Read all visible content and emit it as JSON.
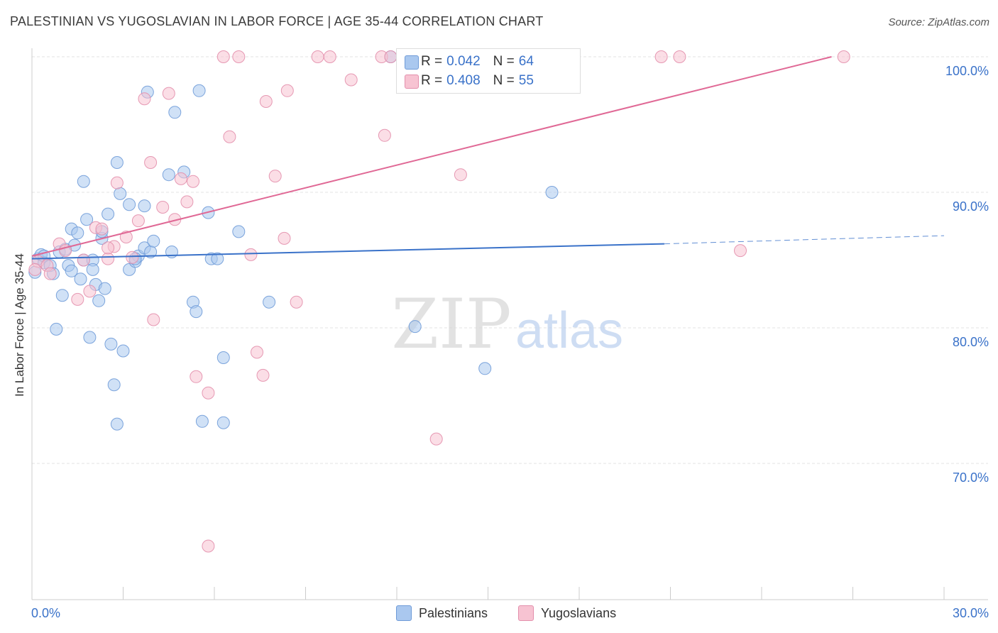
{
  "header": {
    "title": "PALESTINIAN VS YUGOSLAVIAN IN LABOR FORCE | AGE 35-44 CORRELATION CHART",
    "source": "Source: ZipAtlas.com"
  },
  "watermark": {
    "zip": "ZIP",
    "atlas": "atlas"
  },
  "stats": [
    {
      "r_label": "R =",
      "r_value": "0.042",
      "n_label": "N =",
      "n_value": "64",
      "color": "#aac8ef",
      "border": "#6f9bd8"
    },
    {
      "r_label": "R =",
      "r_value": "0.408",
      "n_label": "N =",
      "n_value": "55",
      "color": "#f7c3d2",
      "border": "#e38fac"
    }
  ],
  "legend": [
    {
      "label": "Palestinians",
      "color": "#aac8ef",
      "border": "#6f9bd8"
    },
    {
      "label": "Yugoslavians",
      "color": "#f7c3d2",
      "border": "#e38fac"
    }
  ],
  "chart_data": {
    "type": "scatter",
    "title": "PALESTINIAN VS YUGOSLAVIAN IN LABOR FORCE | AGE 35-44 CORRELATION CHART",
    "xlabel": "",
    "ylabel": "In Labor Force | Age 35-44",
    "xlim": [
      0,
      30
    ],
    "ylim": [
      60,
      102
    ],
    "x_tick_labels": [
      {
        "value": 0,
        "label": "0.0%"
      },
      {
        "value": 30,
        "label": "30.0%"
      }
    ],
    "y_tick_labels": [
      {
        "value": 70,
        "label": "70.0%"
      },
      {
        "value": 80,
        "label": "80.0%"
      },
      {
        "value": 90,
        "label": "90.0%"
      },
      {
        "value": 100,
        "label": "100.0%"
      }
    ],
    "grid": true,
    "colors": {
      "blue": "#3a72c9",
      "blue_fill": "#aac8ef",
      "pink": "#e06895",
      "pink_fill": "#f7c3d2",
      "axis_text": "#3a72c9"
    },
    "series": [
      {
        "name": "Palestinians",
        "color": "#3a72c9",
        "trend": {
          "x0": 0,
          "y0": 85.1,
          "x1": 20.8,
          "y1": 86.2,
          "dashed_to_x": 30,
          "dashed_to_y": 86.8
        },
        "points": [
          [
            0.2,
            85.1
          ],
          [
            0.3,
            85.4
          ],
          [
            0.4,
            84.8
          ],
          [
            0.4,
            85.3
          ],
          [
            0.6,
            84.6
          ],
          [
            0.7,
            84.0
          ],
          [
            0.9,
            85.6
          ],
          [
            1.0,
            82.4
          ],
          [
            0.8,
            79.9
          ],
          [
            1.1,
            85.8
          ],
          [
            1.2,
            84.6
          ],
          [
            1.3,
            87.3
          ],
          [
            1.4,
            86.1
          ],
          [
            1.5,
            87.0
          ],
          [
            1.6,
            83.6
          ],
          [
            1.7,
            85.0
          ],
          [
            1.8,
            88.0
          ],
          [
            1.7,
            90.8
          ],
          [
            1.9,
            79.3
          ],
          [
            2.0,
            85.0
          ],
          [
            2.0,
            84.3
          ],
          [
            2.1,
            83.2
          ],
          [
            2.2,
            82.0
          ],
          [
            2.3,
            86.6
          ],
          [
            2.3,
            87.1
          ],
          [
            2.4,
            82.9
          ],
          [
            2.5,
            88.4
          ],
          [
            2.6,
            78.8
          ],
          [
            2.7,
            75.8
          ],
          [
            2.8,
            72.9
          ],
          [
            2.8,
            92.2
          ],
          [
            2.9,
            89.9
          ],
          [
            3.0,
            78.3
          ],
          [
            3.2,
            89.1
          ],
          [
            3.2,
            84.3
          ],
          [
            3.4,
            84.9
          ],
          [
            3.5,
            85.3
          ],
          [
            3.7,
            89.0
          ],
          [
            3.7,
            85.9
          ],
          [
            3.8,
            97.4
          ],
          [
            3.9,
            85.6
          ],
          [
            4.0,
            86.4
          ],
          [
            4.5,
            91.3
          ],
          [
            4.6,
            85.6
          ],
          [
            4.7,
            95.9
          ],
          [
            5.0,
            91.5
          ],
          [
            5.3,
            81.9
          ],
          [
            5.4,
            81.2
          ],
          [
            5.5,
            97.5
          ],
          [
            5.6,
            73.1
          ],
          [
            5.8,
            88.5
          ],
          [
            5.9,
            85.1
          ],
          [
            6.1,
            85.1
          ],
          [
            6.3,
            73.0
          ],
          [
            6.3,
            77.8
          ],
          [
            6.8,
            87.1
          ],
          [
            7.8,
            81.9
          ],
          [
            11.8,
            100.0
          ],
          [
            12.6,
            80.1
          ],
          [
            14.9,
            77.0
          ],
          [
            17.1,
            90.0
          ],
          [
            0.1,
            84.1
          ],
          [
            1.3,
            84.2
          ],
          [
            3.4,
            85.1
          ]
        ]
      },
      {
        "name": "Yugoslavians",
        "color": "#e06895",
        "trend": {
          "x0": 0,
          "y0": 85.3,
          "x1": 26.3,
          "y1": 100.0
        },
        "points": [
          [
            0.2,
            84.9
          ],
          [
            0.5,
            84.6
          ],
          [
            0.6,
            84.0
          ],
          [
            0.9,
            86.2
          ],
          [
            1.1,
            85.7
          ],
          [
            1.5,
            82.1
          ],
          [
            1.7,
            85.0
          ],
          [
            1.9,
            82.7
          ],
          [
            2.1,
            87.4
          ],
          [
            2.3,
            87.3
          ],
          [
            2.5,
            85.1
          ],
          [
            2.7,
            86.0
          ],
          [
            2.8,
            90.7
          ],
          [
            3.1,
            86.7
          ],
          [
            3.3,
            85.2
          ],
          [
            3.5,
            87.9
          ],
          [
            3.7,
            96.9
          ],
          [
            3.9,
            92.2
          ],
          [
            4.0,
            80.6
          ],
          [
            4.3,
            88.9
          ],
          [
            4.5,
            97.3
          ],
          [
            4.7,
            88.0
          ],
          [
            4.9,
            91.0
          ],
          [
            5.1,
            89.3
          ],
          [
            5.3,
            90.8
          ],
          [
            5.4,
            76.4
          ],
          [
            5.8,
            75.2
          ],
          [
            5.8,
            63.9
          ],
          [
            6.3,
            100.0
          ],
          [
            6.5,
            94.1
          ],
          [
            6.8,
            100.0
          ],
          [
            7.2,
            85.4
          ],
          [
            7.4,
            78.2
          ],
          [
            7.6,
            76.5
          ],
          [
            7.7,
            96.7
          ],
          [
            8.0,
            91.2
          ],
          [
            8.3,
            86.6
          ],
          [
            8.4,
            97.5
          ],
          [
            8.7,
            81.9
          ],
          [
            9.4,
            100.0
          ],
          [
            9.8,
            100.0
          ],
          [
            10.5,
            98.3
          ],
          [
            11.5,
            100.0
          ],
          [
            11.6,
            94.2
          ],
          [
            11.8,
            100.0
          ],
          [
            12.2,
            100.0
          ],
          [
            13.3,
            71.8
          ],
          [
            14.1,
            91.3
          ],
          [
            15.3,
            100.0
          ],
          [
            20.7,
            100.0
          ],
          [
            21.3,
            100.0
          ],
          [
            23.3,
            85.7
          ],
          [
            26.7,
            100.0
          ],
          [
            0.1,
            84.3
          ],
          [
            2.5,
            85.9
          ]
        ]
      }
    ]
  }
}
